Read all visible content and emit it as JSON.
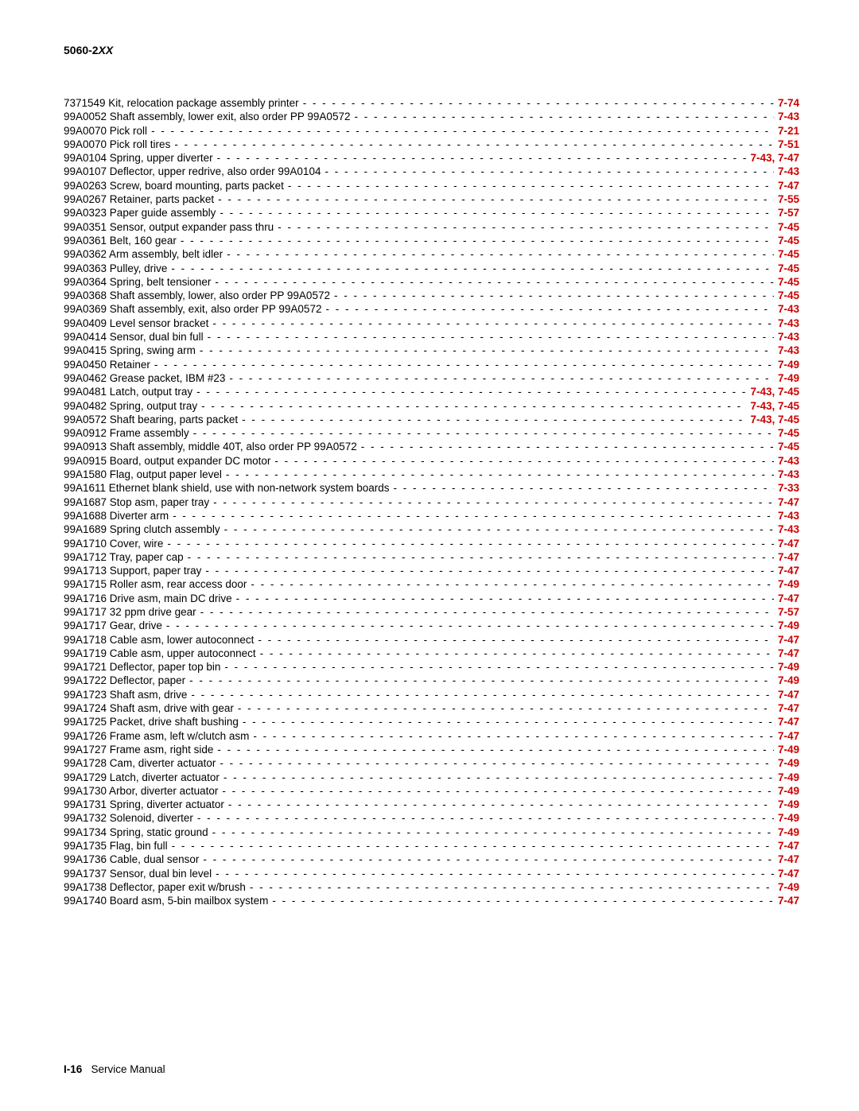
{
  "header": {
    "model": "5060-2",
    "suffix": "XX"
  },
  "footer": {
    "page_num": "I-16",
    "label": "Service Manual"
  },
  "leader_char": "-",
  "entries": [
    {
      "label": "7371549 Kit, relocation package assembly printer",
      "page": "7-74"
    },
    {
      "label": "99A0052 Shaft assembly, lower exit, also order PP 99A0572",
      "page": "7-43"
    },
    {
      "label": "99A0070 Pick roll",
      "page": "7-21"
    },
    {
      "label": "99A0070 Pick roll tires",
      "page": "7-51"
    },
    {
      "label": "99A0104 Spring, upper diverter",
      "page": "7-43,  7-47"
    },
    {
      "label": "99A0107 Deflector, upper redrive, also order 99A0104",
      "page": "7-43"
    },
    {
      "label": "99A0263 Screw, board mounting, parts packet",
      "page": "7-47"
    },
    {
      "label": "99A0267 Retainer, parts packet",
      "page": "7-55"
    },
    {
      "label": "99A0323 Paper guide assembly",
      "page": "7-57"
    },
    {
      "label": "99A0351 Sensor, output expander pass thru",
      "page": "7-45"
    },
    {
      "label": "99A0361 Belt, 160 gear",
      "page": "7-45"
    },
    {
      "label": "99A0362 Arm assembly, belt idler",
      "page": "7-45"
    },
    {
      "label": "99A0363 Pulley, drive",
      "page": "7-45"
    },
    {
      "label": "99A0364 Spring, belt tensioner",
      "page": "7-45"
    },
    {
      "label": "99A0368 Shaft assembly, lower, also order PP 99A0572",
      "page": "7-45"
    },
    {
      "label": "99A0369 Shaft assembly, exit, also order PP 99A0572",
      "page": "7-43"
    },
    {
      "label": "99A0409 Level sensor bracket",
      "page": "7-43"
    },
    {
      "label": "99A0414 Sensor, dual bin full",
      "page": "7-43"
    },
    {
      "label": "99A0415 Spring, swing arm",
      "page": "7-43"
    },
    {
      "label": "99A0450 Retainer",
      "page": "7-49"
    },
    {
      "label": "99A0462 Grease packet, IBM #23",
      "page": "7-49"
    },
    {
      "label": "99A0481 Latch, output tray",
      "page": "7-43,  7-45"
    },
    {
      "label": "99A0482 Spring, output tray",
      "page": "7-43,  7-45"
    },
    {
      "label": "99A0572 Shaft bearing, parts packet",
      "page": "7-43,  7-45"
    },
    {
      "label": "99A0912 Frame assembly",
      "page": "7-45"
    },
    {
      "label": "99A0913 Shaft assembly, middle 40T, also order PP 99A0572",
      "page": "7-45"
    },
    {
      "label": "99A0915 Board, output expander DC motor",
      "page": "7-43"
    },
    {
      "label": "99A1580 Flag, output paper level",
      "page": "7-43"
    },
    {
      "label": "99A1611 Ethernet blank shield, use with non-network system boards",
      "page": "7-33"
    },
    {
      "label": "99A1687 Stop asm, paper tray",
      "page": "7-47"
    },
    {
      "label": "99A1688 Diverter arm",
      "page": "7-43"
    },
    {
      "label": "99A1689 Spring clutch assembly",
      "page": "7-43"
    },
    {
      "label": "99A1710 Cover, wire",
      "page": "7-47"
    },
    {
      "label": "99A1712 Tray, paper cap",
      "page": "7-47"
    },
    {
      "label": "99A1713 Support, paper tray",
      "page": "7-47"
    },
    {
      "label": "99A1715 Roller asm, rear access door",
      "page": "7-49"
    },
    {
      "label": "99A1716 Drive asm, main DC drive",
      "page": "7-47"
    },
    {
      "label": "99A1717 32 ppm drive gear",
      "page": "7-57"
    },
    {
      "label": "99A1717 Gear, drive",
      "page": "7-49"
    },
    {
      "label": "99A1718 Cable asm, lower autoconnect",
      "page": "7-47"
    },
    {
      "label": "99A1719 Cable asm, upper autoconnect",
      "page": "7-47"
    },
    {
      "label": "99A1721 Deflector, paper top bin",
      "page": "7-49"
    },
    {
      "label": "99A1722 Deflector, paper",
      "page": "7-49"
    },
    {
      "label": "99A1723 Shaft asm, drive",
      "page": "7-47"
    },
    {
      "label": "99A1724 Shaft asm, drive with gear",
      "page": "7-47"
    },
    {
      "label": "99A1725 Packet, drive shaft bushing",
      "page": "7-47"
    },
    {
      "label": "99A1726 Frame asm, left w/clutch asm",
      "page": "7-47"
    },
    {
      "label": "99A1727 Frame asm, right side",
      "page": "7-49"
    },
    {
      "label": "99A1728 Cam, diverter actuator",
      "page": "7-49"
    },
    {
      "label": "99A1729 Latch, diverter actuator",
      "page": "7-49"
    },
    {
      "label": "99A1730 Arbor, diverter actuator",
      "page": "7-49"
    },
    {
      "label": "99A1731 Spring, diverter actuator",
      "page": "7-49"
    },
    {
      "label": "99A1732 Solenoid, diverter",
      "page": "7-49"
    },
    {
      "label": "99A1734 Spring, static ground",
      "page": "7-49"
    },
    {
      "label": "99A1735 Flag, bin full",
      "page": "7-47"
    },
    {
      "label": "99A1736 Cable, dual sensor",
      "page": "7-47"
    },
    {
      "label": "99A1737 Sensor, dual bin level",
      "page": "7-47"
    },
    {
      "label": "99A1738 Deflector, paper exit w/brush",
      "page": "7-49"
    },
    {
      "label": "99A1740 Board asm, 5-bin mailbox system",
      "page": "7-47"
    }
  ]
}
